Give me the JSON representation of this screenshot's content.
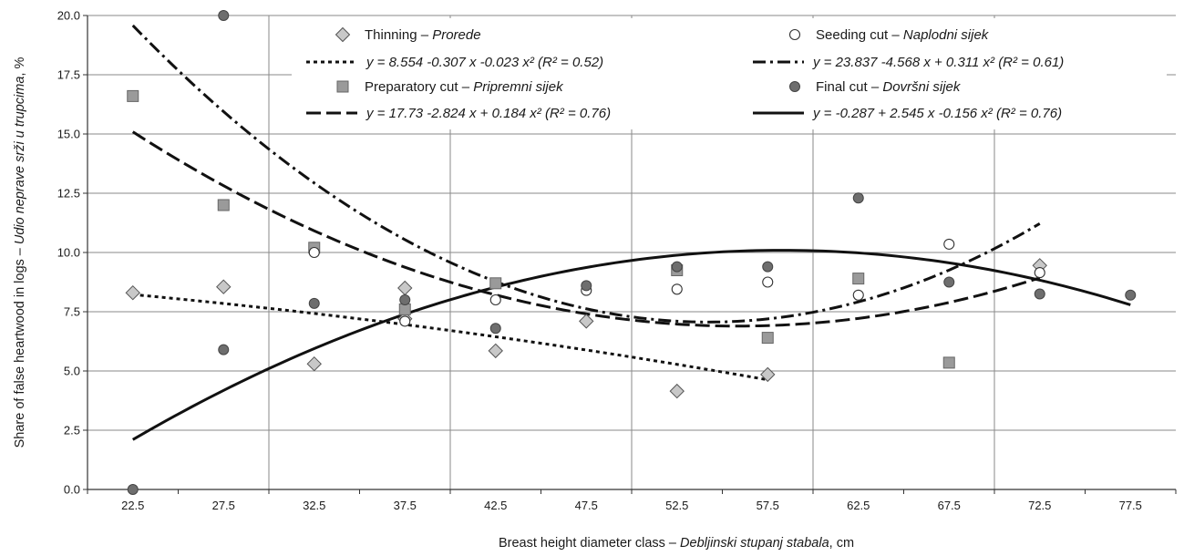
{
  "chart_data": {
    "type": "scatter",
    "title": "",
    "xlabel": {
      "prefix": "Breast height diameter class – ",
      "italic": "Debljinski stupanj stabala",
      "suffix": ", cm"
    },
    "ylabel": {
      "prefix": "Share of false heartwood in logs – ",
      "italic": "Udio neprave srži u trupcima",
      "suffix": ", %"
    },
    "categories": [
      "22.5",
      "27.5",
      "32.5",
      "37.5",
      "42.5",
      "47.5",
      "52.5",
      "57.5",
      "62.5",
      "67.5",
      "72.5",
      "77.5"
    ],
    "xlim": [
      20,
      80
    ],
    "ylim": [
      0,
      20
    ],
    "yticks": [
      "0.0",
      "2.5",
      "5.0",
      "7.5",
      "10.0",
      "12.5",
      "15.0",
      "17.5",
      "20.0"
    ],
    "grid": true,
    "legend_position": "top",
    "series": [
      {
        "key": "thinning",
        "name_en": "Thinning – ",
        "name_hr": "Prorede",
        "marker": "diamond",
        "marker_color": "#c8c8c8",
        "points": [
          [
            22.5,
            8.3
          ],
          [
            27.5,
            8.55
          ],
          [
            32.5,
            5.3
          ],
          [
            37.5,
            8.5
          ],
          [
            37.5,
            7.2
          ],
          [
            42.5,
            5.85
          ],
          [
            47.5,
            7.1
          ],
          [
            52.5,
            4.15
          ],
          [
            57.5,
            4.85
          ],
          [
            72.5,
            9.45
          ]
        ],
        "trend": {
          "label": "y = 8.554 -0.307 x -0.023 x²   (R² = 0.52)",
          "coef": [
            8.554,
            -0.307,
            -0.023
          ],
          "t_range": [
            1,
            8
          ],
          "dash": "4,4"
        }
      },
      {
        "key": "preparatory",
        "name_en": "Preparatory cut – ",
        "name_hr": "Pripremni sijek",
        "marker": "square",
        "marker_color": "#9a9a9a",
        "points": [
          [
            22.5,
            16.6
          ],
          [
            27.5,
            12.0
          ],
          [
            32.5,
            10.2
          ],
          [
            37.5,
            7.6
          ],
          [
            42.5,
            8.7
          ],
          [
            52.5,
            9.25
          ],
          [
            57.5,
            6.4
          ],
          [
            62.5,
            8.9
          ],
          [
            67.5,
            5.35
          ]
        ],
        "trend": {
          "label": "y = 17.73 -2.824 x + 0.184 x²   (R² = 0.76)",
          "coef": [
            17.73,
            -2.824,
            0.184
          ],
          "t_range": [
            1,
            11
          ],
          "dash": "16,6"
        }
      },
      {
        "key": "seeding",
        "name_en": "Seeding cut – ",
        "name_hr": "Naplodni sijek",
        "marker": "circle-open",
        "marker_color": "#ffffff",
        "points": [
          [
            32.5,
            10.0
          ],
          [
            37.5,
            7.1
          ],
          [
            42.5,
            8.0
          ],
          [
            47.5,
            8.4
          ],
          [
            52.5,
            8.45
          ],
          [
            57.5,
            8.75
          ],
          [
            62.5,
            8.2
          ],
          [
            67.5,
            10.35
          ],
          [
            72.5,
            9.15
          ]
        ],
        "trend": {
          "label": "y = 23.837 -4.568 x + 0.311 x²   (R² = 0.61)",
          "coef": [
            23.837,
            -4.568,
            0.311
          ],
          "t_range": [
            1,
            11
          ],
          "dash": "14,5,3,5"
        }
      },
      {
        "key": "final",
        "name_en": "Final cut – ",
        "name_hr": "Dovršni sijek",
        "marker": "circle-filled",
        "marker_color": "#6e6e6e",
        "points": [
          [
            22.5,
            0.0
          ],
          [
            27.5,
            20.0
          ],
          [
            27.5,
            5.9
          ],
          [
            32.5,
            7.85
          ],
          [
            37.5,
            8.0
          ],
          [
            42.5,
            6.8
          ],
          [
            47.5,
            8.6
          ],
          [
            52.5,
            9.4
          ],
          [
            57.5,
            9.4
          ],
          [
            62.5,
            12.3
          ],
          [
            67.5,
            8.75
          ],
          [
            72.5,
            8.25
          ],
          [
            77.5,
            8.2
          ]
        ],
        "trend": {
          "label": "y = -0.287 + 2.545 x -0.156 x²   (R² = 0.76)",
          "coef": [
            -0.287,
            2.545,
            -0.156
          ],
          "t_range": [
            1,
            12
          ],
          "dash": ""
        }
      }
    ]
  }
}
